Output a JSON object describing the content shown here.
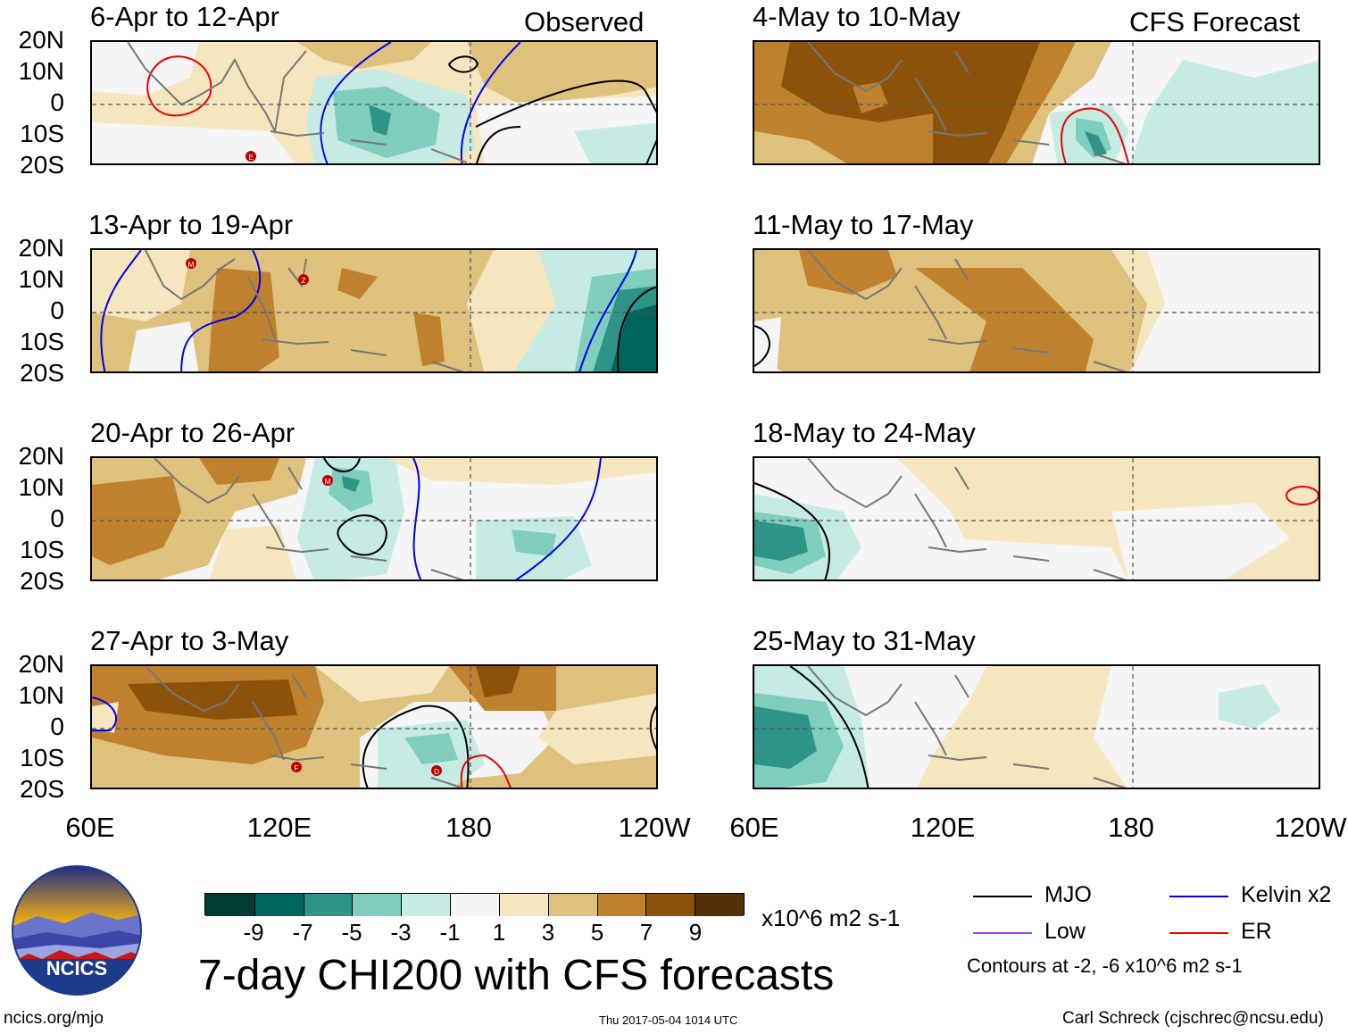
{
  "observed_label": "Observed",
  "forecast_label": "CFS Forecast",
  "lat_labels": [
    "20N",
    "10N",
    "0",
    "10S",
    "20S"
  ],
  "lon_labels": [
    "60E",
    "120E",
    "180",
    "120W"
  ],
  "observed_panels": [
    {
      "title": "6-Apr to 12-Apr"
    },
    {
      "title": "13-Apr to 19-Apr"
    },
    {
      "title": "20-Apr to 26-Apr"
    },
    {
      "title": "27-Apr to 3-May"
    }
  ],
  "forecast_panels": [
    {
      "title": "4-May to 10-May"
    },
    {
      "title": "11-May to 17-May"
    },
    {
      "title": "18-May to 24-May"
    },
    {
      "title": "25-May to 31-May"
    }
  ],
  "storm_markers": {
    "p1": [
      "E"
    ],
    "p2": [
      "M",
      "Z"
    ],
    "p3": [
      "M"
    ],
    "p4": [
      "F",
      "D"
    ]
  },
  "colorbar": {
    "ticks": [
      "-9",
      "-7",
      "-5",
      "-3",
      "-1",
      "1",
      "3",
      "5",
      "7",
      "9"
    ],
    "colors": [
      "#013d33",
      "#00665c",
      "#2e9488",
      "#7fcdbd",
      "#c6ebe3",
      "#f5f5f5",
      "#f5e6bf",
      "#dfc17e",
      "#bf812d",
      "#8c510a",
      "#543005"
    ],
    "units": "x10^6 m2 s-1"
  },
  "main_title": "7-day CHI200 with CFS forecasts",
  "logo_text": "NCICS",
  "url": "ncics.org/mjo",
  "timestamp": "Thu 2017-05-04 1014 UTC",
  "author": "Carl Schreck (cjschrec@ncsu.edu)",
  "legend": {
    "items": [
      {
        "label": "MJO",
        "color": "#000000"
      },
      {
        "label": "Kelvin x2",
        "color": "#0000ee"
      },
      {
        "label": "Low",
        "color": "#a040f0"
      },
      {
        "label": "ER",
        "color": "#ee0000"
      }
    ],
    "contours_note": "Contours at -2, -6 x10^6 m2 s-1"
  }
}
